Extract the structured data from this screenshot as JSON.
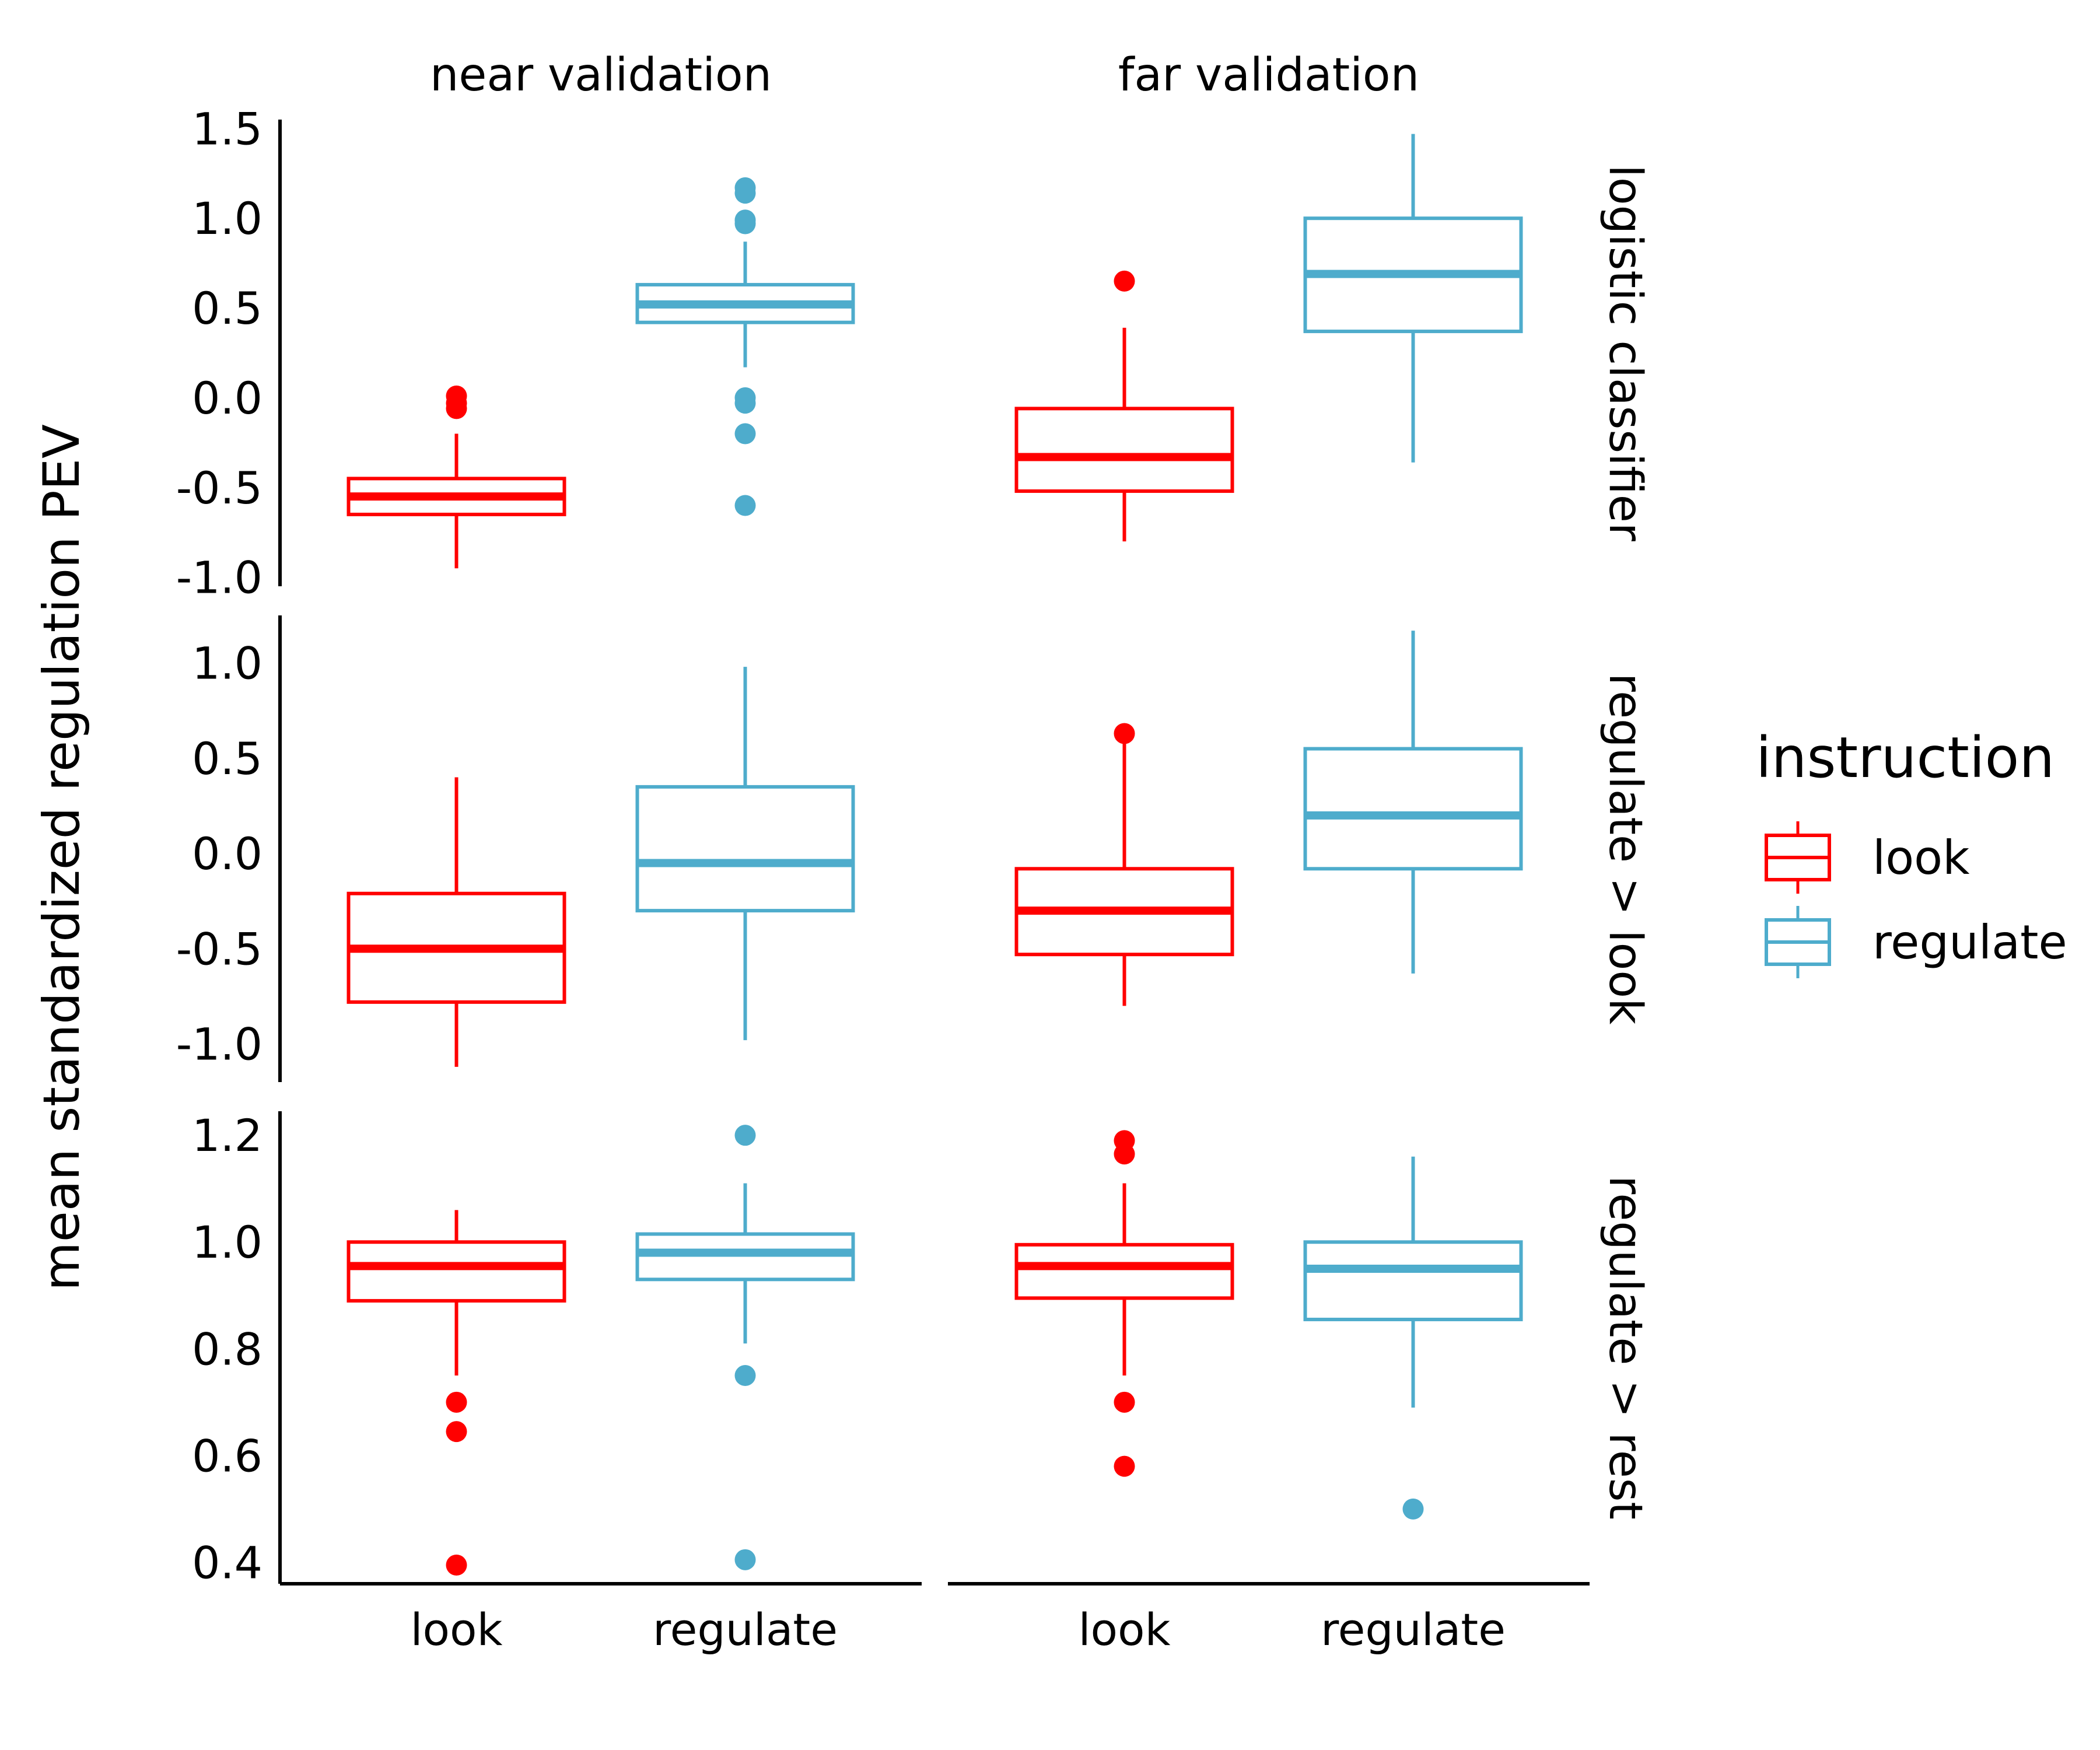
{
  "chart_data": {
    "type": "box",
    "ylabel": "mean standardized regulation PEV",
    "xlabel": "",
    "categories": [
      "look",
      "regulate"
    ],
    "columns": [
      "near validation",
      "far validation"
    ],
    "rows": [
      "logistic classifier",
      "regulate > look",
      "regulate > rest"
    ],
    "legend": {
      "title": "instruction",
      "position": "right",
      "items": [
        {
          "name": "look",
          "color": "#ff0000"
        },
        {
          "name": "regulate",
          "color": "#4eaccc"
        }
      ]
    },
    "grid": false,
    "panels": [
      {
        "row": "logistic classifier",
        "yrange": [
          -1.05,
          1.55
        ],
        "yticks": [
          1.5,
          1.0,
          0.5,
          0.0,
          -0.5,
          -1.0
        ],
        "ytick_labels": [
          "1.5",
          "1.0",
          "0.5",
          "0.0",
          "-0.5",
          "-1.0"
        ],
        "cells": [
          [
            {
              "instruction": "look",
              "whisker_low": -0.95,
              "q1": -0.65,
              "median": -0.55,
              "q3": -0.45,
              "whisker_high": -0.2,
              "outliers": [
                -0.06,
                0.01,
                -0.03
              ]
            },
            {
              "instruction": "regulate",
              "whisker_low": 0.17,
              "q1": 0.42,
              "median": 0.52,
              "q3": 0.63,
              "whisker_high": 0.87,
              "outliers": [
                1.17,
                1.14,
                0.99,
                0.97,
                0.0,
                -0.03,
                -0.2,
                -0.6
              ]
            }
          ],
          [
            {
              "instruction": "look",
              "whisker_low": -0.8,
              "q1": -0.52,
              "median": -0.33,
              "q3": -0.06,
              "whisker_high": 0.39,
              "outliers": [
                0.65
              ]
            },
            {
              "instruction": "regulate",
              "whisker_low": -0.36,
              "q1": 0.37,
              "median": 0.69,
              "q3": 1.0,
              "whisker_high": 1.47,
              "outliers": []
            }
          ]
        ]
      },
      {
        "row": "regulate > look",
        "yrange": [
          -1.2,
          1.25
        ],
        "yticks": [
          1.0,
          0.5,
          0.0,
          -0.5,
          -1.0
        ],
        "ytick_labels": [
          "1.0",
          "0.5",
          "0.0",
          "-0.5",
          "-1.0"
        ],
        "cells": [
          [
            {
              "instruction": "look",
              "whisker_low": -1.12,
              "q1": -0.78,
              "median": -0.5,
              "q3": -0.21,
              "whisker_high": 0.4,
              "outliers": []
            },
            {
              "instruction": "regulate",
              "whisker_low": -0.98,
              "q1": -0.3,
              "median": -0.05,
              "q3": 0.35,
              "whisker_high": 0.98,
              "outliers": []
            }
          ],
          [
            {
              "instruction": "look",
              "whisker_low": -0.8,
              "q1": -0.53,
              "median": -0.3,
              "q3": -0.08,
              "whisker_high": 0.58,
              "outliers": [
                0.63
              ]
            },
            {
              "instruction": "regulate",
              "whisker_low": -0.63,
              "q1": -0.08,
              "median": 0.2,
              "q3": 0.55,
              "whisker_high": 1.17,
              "outliers": []
            }
          ]
        ]
      },
      {
        "row": "regulate > rest",
        "yrange": [
          0.36,
          1.245
        ],
        "yticks": [
          1.2,
          1.0,
          0.8,
          0.6,
          0.4
        ],
        "ytick_labels": [
          "1.2",
          "1.0",
          "0.8",
          "0.6",
          "0.4"
        ],
        "cells": [
          [
            {
              "instruction": "look",
              "whisker_low": 0.75,
              "q1": 0.89,
              "median": 0.955,
              "q3": 1.0,
              "whisker_high": 1.06,
              "outliers": [
                0.7,
                0.645,
                0.395
              ]
            },
            {
              "instruction": "regulate",
              "whisker_low": 0.81,
              "q1": 0.93,
              "median": 0.98,
              "q3": 1.015,
              "whisker_high": 1.11,
              "outliers": [
                1.2,
                0.75,
                0.405
              ]
            }
          ],
          [
            {
              "instruction": "look",
              "whisker_low": 0.75,
              "q1": 0.895,
              "median": 0.955,
              "q3": 0.995,
              "whisker_high": 1.11,
              "outliers": [
                1.19,
                1.165,
                0.7,
                0.58
              ]
            },
            {
              "instruction": "regulate",
              "whisker_low": 0.69,
              "q1": 0.855,
              "median": 0.95,
              "q3": 1.0,
              "whisker_high": 1.16,
              "outliers": [
                0.5
              ]
            }
          ]
        ]
      }
    ]
  }
}
